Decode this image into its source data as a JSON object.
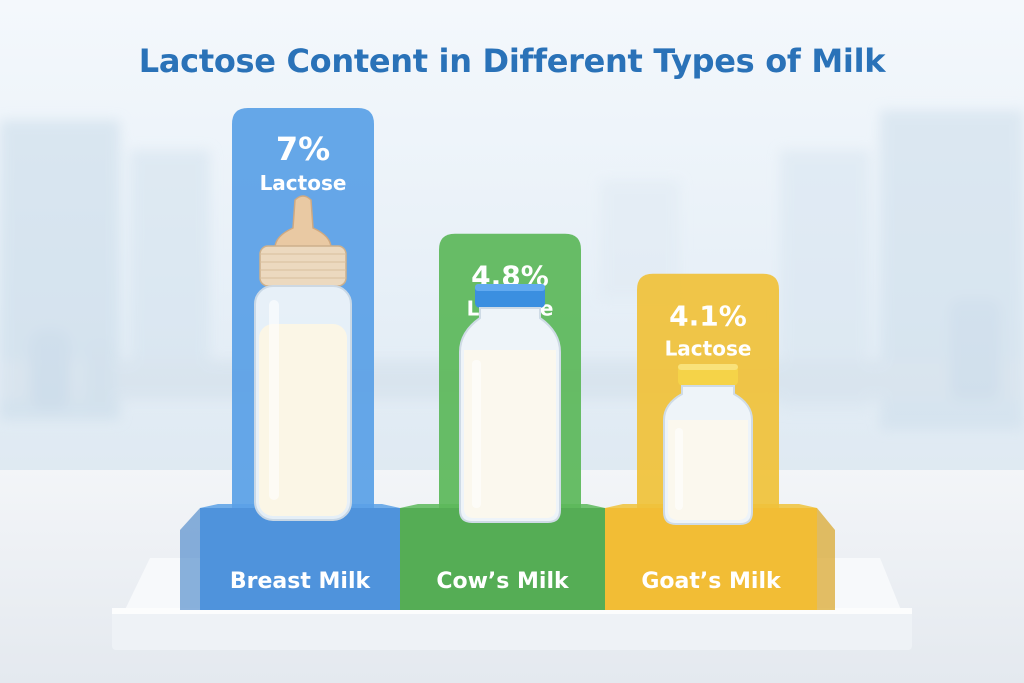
{
  "chart_data": {
    "type": "bar",
    "title": "Lactose Content in Different Types of Milk",
    "categories": [
      "Breast Milk",
      "Cow’s Milk",
      "Goat’s Milk"
    ],
    "values": [
      7,
      4.8,
      4.1
    ],
    "unit": "%",
    "value_labels": [
      "7%",
      "4.8%",
      "4.1%"
    ],
    "value_sublabel": "Lactose",
    "colors": [
      "#5aa0e6",
      "#5cb85a",
      "#f0c23a"
    ],
    "base_colors": [
      "#4f93dc",
      "#55ad55",
      "#f2bd35"
    ],
    "icons": [
      "baby-bottle-icon",
      "milk-bottle-icon",
      "milk-jar-icon"
    ],
    "grid": false,
    "legend": "none"
  }
}
